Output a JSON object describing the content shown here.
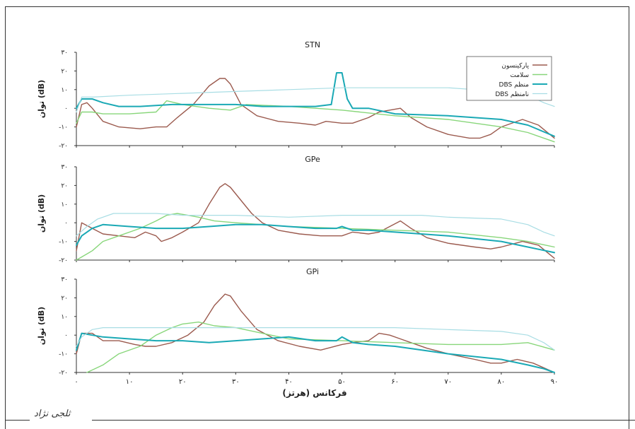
{
  "figure": {
    "xlabel": "فرکانس (هرتز)",
    "ylabel_line1": "توان",
    "ylabel_line2": "(dB)",
    "footer_signature": "ثلجی نژاد"
  },
  "chart_data": [
    {
      "type": "line",
      "title": "STN",
      "xlim": [
        0,
        90
      ],
      "ylim": [
        -20,
        30
      ],
      "x_ticks": [
        "۰",
        "۱۰",
        "۲۰",
        "۳۰",
        "۴۰",
        "۵۰",
        "۶۰",
        "۷۰",
        "۸۰",
        "۹۰"
      ],
      "y_ticks": [
        "-۲۰",
        "-۱۰",
        "۰",
        "۱۰",
        "۲۰",
        "۳۰"
      ],
      "legend": {
        "placement": "top-right"
      },
      "series": [
        {
          "name": "پارکینسون",
          "color": "#9b5a4e",
          "x": [
            0,
            1,
            2,
            3,
            5,
            8,
            12,
            15,
            17,
            19,
            22,
            25,
            27,
            28,
            29,
            31,
            34,
            38,
            42,
            45,
            47,
            50,
            52,
            55,
            57,
            59,
            61,
            63,
            66,
            70,
            74,
            76,
            78,
            80,
            84,
            87,
            90
          ],
          "y": [
            -10,
            2,
            3,
            0,
            -7,
            -10,
            -11,
            -10,
            -10,
            -5,
            2,
            12,
            16,
            16,
            13,
            2,
            -4,
            -7,
            -8,
            -9,
            -7,
            -8,
            -8,
            -5,
            -2,
            -1,
            0,
            -5,
            -10,
            -14,
            -16,
            -16,
            -14,
            -10,
            -6,
            -9,
            -16
          ]
        },
        {
          "name": "سلامت",
          "color": "#88d67a",
          "x": [
            0,
            1,
            3,
            5,
            10,
            15,
            17,
            20,
            25,
            29,
            32,
            40,
            50,
            60,
            70,
            80,
            85,
            90
          ],
          "y": [
            -8,
            -2,
            -2,
            -3,
            -3,
            -2,
            4,
            2,
            0,
            -1,
            2,
            1,
            -1,
            -4,
            -6,
            -10,
            -13,
            -18
          ]
        },
        {
          "name": "DBS منظم",
          "color": "#1aa9b5",
          "x": [
            0,
            1,
            3,
            5,
            8,
            10,
            12,
            18,
            25,
            30,
            35,
            40,
            45,
            48,
            49,
            50,
            51,
            52,
            55,
            60,
            70,
            80,
            85,
            90
          ],
          "y": [
            0,
            5,
            5,
            3,
            1,
            1,
            1,
            2,
            2,
            2,
            1,
            1,
            1,
            2,
            19,
            19,
            5,
            0,
            0,
            -3,
            -4,
            -6,
            -9,
            -15
          ]
        },
        {
          "name": "DBS نامنظم",
          "color": "#a8dde4",
          "x": [
            0,
            1,
            3,
            10,
            20,
            30,
            40,
            50,
            60,
            70,
            75,
            80,
            85,
            88,
            90
          ],
          "y": [
            -2,
            6,
            6,
            7,
            8,
            9,
            10,
            11,
            11,
            11,
            10,
            9,
            7,
            3,
            1
          ]
        }
      ]
    },
    {
      "type": "line",
      "title": "GPe",
      "xlim": [
        0,
        90
      ],
      "ylim": [
        -20,
        30
      ],
      "x_ticks": [
        "۰",
        "۱۰",
        "۲۰",
        "۳۰",
        "۴۰",
        "۵۰",
        "۶۰",
        "۷۰",
        "۸۰",
        "۹۰"
      ],
      "y_ticks": [
        "-۲۰",
        "-۱۰",
        "۰",
        "۱۰",
        "۲۰",
        "۳۰"
      ],
      "series": [
        {
          "name": "پارکینسون",
          "color": "#9b5a4e",
          "x": [
            0,
            1,
            3,
            5,
            8,
            11,
            13,
            14,
            15,
            16,
            18,
            20,
            23,
            25,
            27,
            28,
            29,
            31,
            33,
            35,
            38,
            42,
            46,
            50,
            52,
            55,
            57,
            59,
            61,
            63,
            66,
            70,
            75,
            78,
            80,
            84,
            87,
            90
          ],
          "y": [
            -15,
            0,
            -3,
            -6,
            -7,
            -8,
            -5,
            -6,
            -7,
            -10,
            -8,
            -5,
            0,
            10,
            19,
            21,
            19,
            12,
            5,
            0,
            -4,
            -6,
            -7,
            -7,
            -5,
            -6,
            -5,
            -2,
            1,
            -3,
            -8,
            -11,
            -13,
            -14,
            -13,
            -10,
            -12,
            -19
          ]
        },
        {
          "name": "سلامت",
          "color": "#88d67a",
          "x": [
            0,
            3,
            5,
            8,
            12,
            15,
            17,
            19,
            21,
            23,
            26,
            30,
            40,
            50,
            60,
            70,
            80,
            85,
            90
          ],
          "y": [
            -20,
            -15,
            -10,
            -7,
            -3,
            1,
            4,
            5,
            4,
            3,
            1,
            0,
            -2,
            -3,
            -4,
            -5,
            -8,
            -10,
            -13
          ]
        },
        {
          "name": "DBS منظم",
          "color": "#1aa9b5",
          "x": [
            0,
            1,
            3,
            5,
            10,
            15,
            20,
            25,
            30,
            35,
            40,
            45,
            49,
            50,
            52,
            55,
            60,
            70,
            80,
            85,
            90
          ],
          "y": [
            -12,
            -7,
            -3,
            -1,
            -2,
            -3,
            -3,
            -2,
            -1,
            -1,
            -2,
            -3,
            -3,
            -2,
            -4,
            -4,
            -5,
            -7,
            -10,
            -13,
            -16
          ]
        },
        {
          "name": "DBS نامنظم",
          "color": "#a8dde4",
          "x": [
            0,
            2,
            4,
            7,
            10,
            15,
            20,
            30,
            40,
            50,
            60,
            65,
            70,
            80,
            85,
            88,
            90
          ],
          "y": [
            -7,
            -2,
            2,
            5,
            5,
            5,
            4,
            4,
            3,
            4,
            4,
            4,
            3,
            2,
            -1,
            -5,
            -7
          ]
        }
      ]
    },
    {
      "type": "line",
      "title": "GPi",
      "xlim": [
        0,
        90
      ],
      "ylim": [
        -20,
        30
      ],
      "x_ticks": [
        "۰",
        "۱۰",
        "۲۰",
        "۳۰",
        "۴۰",
        "۵۰",
        "۶۰",
        "۷۰",
        "۸۰",
        "۹۰"
      ],
      "y_ticks": [
        "-۲۰",
        "-۱۰",
        "۰",
        "۱۰",
        "۲۰",
        "۳۰"
      ],
      "series": [
        {
          "name": "پارکینسون",
          "color": "#9b5a4e",
          "x": [
            0,
            1,
            3,
            5,
            8,
            11,
            13,
            15,
            18,
            21,
            24,
            26,
            28,
            29,
            31,
            34,
            38,
            42,
            46,
            50,
            52,
            55,
            57,
            59,
            61,
            63,
            66,
            70,
            75,
            78,
            80,
            83,
            86,
            90
          ],
          "y": [
            -10,
            1,
            1,
            -3,
            -3,
            -5,
            -6,
            -6,
            -4,
            0,
            7,
            16,
            22,
            21,
            13,
            3,
            -3,
            -6,
            -8,
            -5,
            -4,
            -3,
            1,
            0,
            -2,
            -4,
            -7,
            -10,
            -13,
            -15,
            -15,
            -13,
            -15,
            -20
          ]
        },
        {
          "name": "سلامت",
          "color": "#88d67a",
          "x": [
            2,
            5,
            8,
            12,
            15,
            18,
            20,
            23,
            26,
            30,
            35,
            40,
            50,
            60,
            70,
            80,
            85,
            90
          ],
          "y": [
            -20,
            -16,
            -10,
            -6,
            0,
            4,
            6,
            7,
            5,
            4,
            1,
            -2,
            -3,
            -4,
            -5,
            -5,
            -4,
            -8
          ]
        },
        {
          "name": "DBS منظم",
          "color": "#1aa9b5",
          "x": [
            0,
            1,
            3,
            5,
            10,
            15,
            20,
            25,
            30,
            35,
            40,
            45,
            49,
            50,
            52,
            55,
            60,
            65,
            70,
            80,
            85,
            88,
            90
          ],
          "y": [
            -8,
            1,
            0,
            -1,
            -2,
            -3,
            -3,
            -4,
            -3,
            -2,
            -1,
            -3,
            -3,
            -1,
            -4,
            -5,
            -6,
            -8,
            -10,
            -13,
            -16,
            -18,
            -20
          ]
        },
        {
          "name": "DBS نامنظم",
          "color": "#a8dde4",
          "x": [
            0,
            1,
            3,
            5,
            10,
            20,
            30,
            40,
            50,
            60,
            70,
            80,
            85,
            88,
            90
          ],
          "y": [
            -6,
            -1,
            3,
            4,
            4,
            4,
            4,
            4,
            4,
            4,
            3,
            2,
            0,
            -4,
            -8
          ]
        }
      ]
    }
  ]
}
